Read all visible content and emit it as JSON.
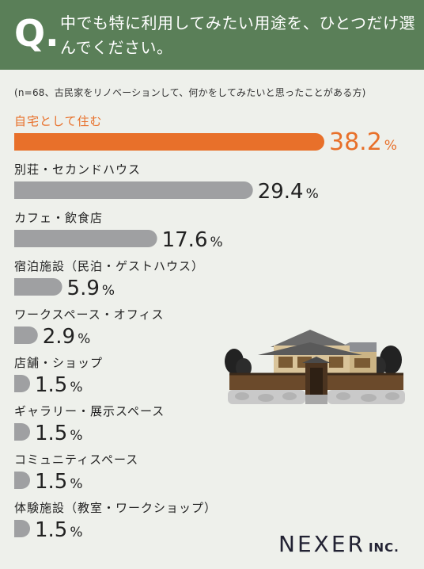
{
  "header": {
    "q_mark": "Q.",
    "title": "中でも特に利用してみたい用途を、ひとつだけ選んでください。"
  },
  "note": "(n=68、古民家をリノベーションして、何かをしてみたいと思ったことがある方)",
  "colors": {
    "header_bg": "#5a7f58",
    "highlight": "#e8702a",
    "bar": "#9fa0a2",
    "background": "#eef0eb"
  },
  "chart_data": {
    "type": "bar",
    "orientation": "horizontal",
    "unit": "%",
    "categories": [
      "自宅として住む",
      "別荘・セカンドハウス",
      "カフェ・飲食店",
      "宿泊施設（民泊・ゲストハウス）",
      "ワークスペース・オフィス",
      "店舗・ショップ",
      "ギャラリー・展示スペース",
      "コミュニティスペース",
      "体験施設（教室・ワークショップ）"
    ],
    "values": [
      38.2,
      29.4,
      17.6,
      5.9,
      2.9,
      1.5,
      1.5,
      1.5,
      1.5
    ],
    "value_labels": [
      "38.2",
      "29.4",
      "17.6",
      "5.9",
      "2.9",
      "1.5",
      "1.5",
      "1.5",
      "1.5"
    ],
    "highlight_index": 0,
    "xlim": [
      0,
      38.2
    ]
  },
  "logo": {
    "name": "NEXER",
    "suffix": "INC."
  }
}
